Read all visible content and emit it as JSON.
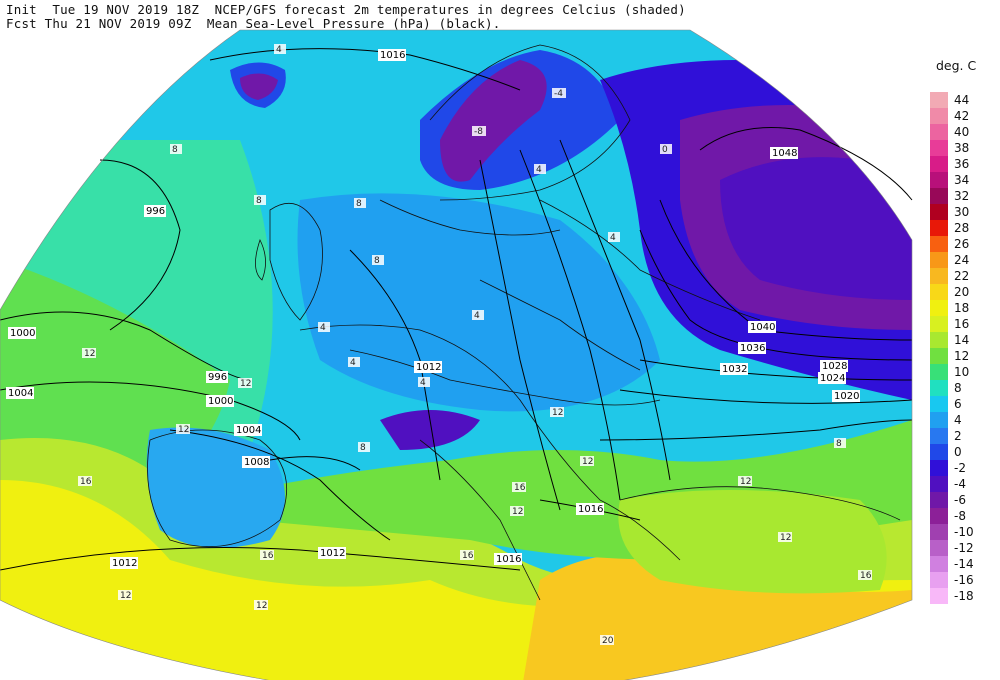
{
  "header": {
    "line1": "Init  Tue 19 NOV 2019 18Z  NCEP/GFS forecast 2m temperatures in degrees Celcius (shaded)",
    "line2": "Fcst Thu 21 NOV 2019 09Z  Mean Sea-Level Pressure (hPa) (black).",
    "line3": ""
  },
  "legend": {
    "title": "deg. C",
    "items": [
      {
        "label": "44",
        "color": "#f2aab4"
      },
      {
        "label": "42",
        "color": "#f08aa8"
      },
      {
        "label": "40",
        "color": "#ec64a0"
      },
      {
        "label": "38",
        "color": "#e83c98"
      },
      {
        "label": "36",
        "color": "#d81c88"
      },
      {
        "label": "34",
        "color": "#b8107a"
      },
      {
        "label": "32",
        "color": "#980858"
      },
      {
        "label": "30",
        "color": "#b00020"
      },
      {
        "label": "28",
        "color": "#e81808"
      },
      {
        "label": "26",
        "color": "#f86010"
      },
      {
        "label": "24",
        "color": "#f89818"
      },
      {
        "label": "22",
        "color": "#f8b820"
      },
      {
        "label": "20",
        "color": "#f8d818"
      },
      {
        "label": "18",
        "color": "#f0f010"
      },
      {
        "label": "16",
        "color": "#d8f020"
      },
      {
        "label": "14",
        "color": "#a8e830"
      },
      {
        "label": "12",
        "color": "#70e040"
      },
      {
        "label": "10",
        "color": "#38e078"
      },
      {
        "label": "8",
        "color": "#20e0c0"
      },
      {
        "label": "6",
        "color": "#18c8f0"
      },
      {
        "label": "4",
        "color": "#20a0f0"
      },
      {
        "label": "2",
        "color": "#2878f0"
      },
      {
        "label": "0",
        "color": "#2048e8"
      },
      {
        "label": "-2",
        "color": "#3010d8"
      },
      {
        "label": "-4",
        "color": "#5010c0"
      },
      {
        "label": "-6",
        "color": "#7018a8"
      },
      {
        "label": "-8",
        "color": "#8c2098"
      },
      {
        "label": "-10",
        "color": "#a040b0"
      },
      {
        "label": "-12",
        "color": "#b860c8"
      },
      {
        "label": "-14",
        "color": "#d080e0"
      },
      {
        "label": "-16",
        "color": "#e8a0f0"
      },
      {
        "label": "-18",
        "color": "#f8b8f8"
      }
    ]
  },
  "isobar_labels": [
    "1016",
    "996",
    "1000",
    "996",
    "1000",
    "1004",
    "1004",
    "1008",
    "1012",
    "1012",
    "1016",
    "1016",
    "1012",
    "1048",
    "1040",
    "1036",
    "1032",
    "1028",
    "1024",
    "1020"
  ],
  "temp_labels": [
    "4",
    "8",
    "8",
    "8",
    "8",
    "4",
    "4",
    "4",
    "4",
    "8",
    "12",
    "12",
    "12",
    "16",
    "16",
    "16",
    "12",
    "12",
    "8",
    "0",
    "4",
    "12",
    "12",
    "12",
    "12",
    "20",
    "16",
    "16",
    "12",
    "-4",
    "-8",
    "4"
  ]
}
